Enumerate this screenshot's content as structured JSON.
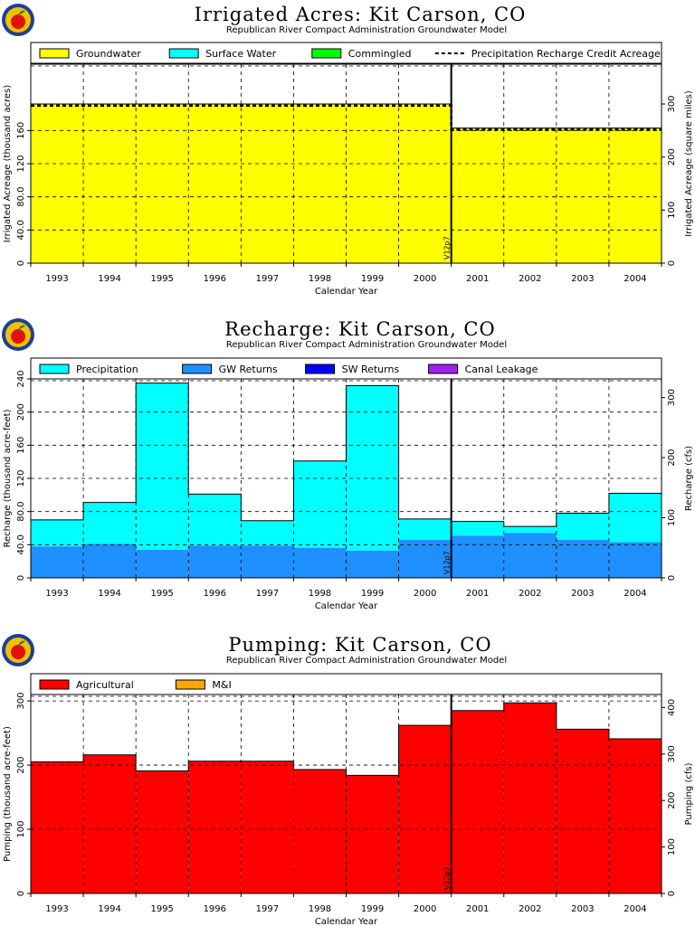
{
  "logo_colors": {
    "ring": "#1d3f9a",
    "fill": "#f3c100",
    "apple": "#e0120c",
    "leaf": "#1f8a1f"
  },
  "chart_data": [
    {
      "type": "area",
      "title": "Irrigated Acres: Kit Carson, CO",
      "subtitle": "Republican River Compact Administration Groundwater Model",
      "xlabel": "Calendar Year",
      "ylabel": "Irrigated Acreage (thousand acres)",
      "y2label": "Irrigated Acreage (square miles)",
      "categories": [
        "1993",
        "1994",
        "1995",
        "1996",
        "1997",
        "1998",
        "1999",
        "2000",
        "2001",
        "2002",
        "2003",
        "2004"
      ],
      "ylim": [
        0,
        240
      ],
      "yticks": [
        "0",
        "40.0",
        "80.0",
        "120",
        "160"
      ],
      "ytick_values": [
        0,
        40,
        80,
        120,
        160
      ],
      "y2lim": [
        0,
        375
      ],
      "y2ticks": [
        "0",
        "100",
        "200",
        "300"
      ],
      "y2tick_values": [
        0,
        100,
        200,
        300
      ],
      "series": [
        {
          "name": "Groundwater",
          "color": "#ffff00",
          "values": [
            192,
            192,
            192,
            192,
            192,
            192,
            192,
            192,
            163,
            163,
            163,
            163
          ]
        },
        {
          "name": "Surface Water",
          "color": "#00ffff",
          "values": [
            0,
            0,
            0,
            0,
            0,
            0,
            0,
            0,
            0,
            0,
            0,
            0
          ]
        },
        {
          "name": "Commingled",
          "color": "#00ff00",
          "values": [
            0,
            0,
            0,
            0,
            0,
            0,
            0,
            0,
            0,
            0,
            0,
            0
          ]
        }
      ],
      "line_series": {
        "name": "Precipitation Recharge Credit Acreage",
        "style": "dashed",
        "values": [
          190,
          190,
          190,
          190,
          190,
          190,
          190,
          190,
          161,
          161,
          161,
          161
        ]
      },
      "legend_position": "top",
      "marker": {
        "label": "V12p7",
        "after_index": 7
      },
      "grid": true
    },
    {
      "type": "area",
      "title": "Recharge: Kit Carson, CO",
      "subtitle": "Republican River Compact Administration Groundwater Model",
      "xlabel": "Calendar Year",
      "ylabel": "Recharge (thousand acre-feet)",
      "y2label": "Recharge (cfs)",
      "categories": [
        "1993",
        "1994",
        "1995",
        "1996",
        "1997",
        "1998",
        "1999",
        "2000",
        "2001",
        "2002",
        "2003",
        "2004"
      ],
      "ylim": [
        0,
        240
      ],
      "yticks": [
        "0",
        "40.0",
        "80.0",
        "120",
        "160",
        "200",
        "240"
      ],
      "ytick_values": [
        0,
        40,
        80,
        120,
        160,
        200,
        240
      ],
      "y2lim": [
        0,
        331
      ],
      "y2ticks": [
        "0",
        "100",
        "200",
        "300"
      ],
      "y2tick_values": [
        0,
        100,
        200,
        300
      ],
      "series": [
        {
          "name": "GW Returns",
          "color": "#1e90ff",
          "values": [
            38,
            41,
            34,
            39,
            39,
            36,
            33,
            46,
            51,
            54,
            46,
            43
          ]
        },
        {
          "name": "Precipitation",
          "color": "#00ffff",
          "values": [
            32,
            50,
            201,
            62,
            30,
            105,
            199,
            25,
            17,
            8,
            32,
            59
          ]
        },
        {
          "name": "SW Returns",
          "color": "#0000ff",
          "values": [
            0,
            0,
            0,
            0,
            0,
            0,
            0,
            0,
            0,
            0,
            0,
            0
          ]
        },
        {
          "name": "Canal Leakage",
          "color": "#a020f0",
          "values": [
            0,
            0,
            0,
            0,
            0,
            0,
            0,
            0,
            0,
            0,
            0,
            0
          ]
        }
      ],
      "legend_order": [
        "Precipitation",
        "GW Returns",
        "SW Returns",
        "Canal Leakage"
      ],
      "legend_position": "top",
      "marker": {
        "label": "V12p7",
        "after_index": 7
      },
      "grid": true
    },
    {
      "type": "area",
      "title": "Pumping: Kit Carson, CO",
      "subtitle": "Republican River Compact Administration Groundwater Model",
      "xlabel": "Calendar Year",
      "ylabel": "Pumping (thousand acre-feet)",
      "y2label": "Pumping (cfs)",
      "categories": [
        "1993",
        "1994",
        "1995",
        "1996",
        "1997",
        "1998",
        "1999",
        "2000",
        "2001",
        "2002",
        "2003",
        "2004"
      ],
      "ylim": [
        0,
        310
      ],
      "yticks": [
        "0",
        "100",
        "200",
        "300"
      ],
      "ytick_values": [
        0,
        100,
        200,
        300
      ],
      "y2lim": [
        0,
        428
      ],
      "y2ticks": [
        "0",
        "100",
        "200",
        "300",
        "400"
      ],
      "y2tick_values": [
        0,
        100,
        200,
        300,
        400
      ],
      "series": [
        {
          "name": "Agricultural",
          "color": "#ff0000",
          "values": [
            205,
            216,
            191,
            206,
            206,
            193,
            184,
            262,
            285,
            297,
            256,
            241
          ]
        },
        {
          "name": "M&I",
          "color": "#ffa500",
          "values": [
            0,
            0,
            0,
            0,
            0,
            0,
            0,
            0,
            0,
            0,
            0,
            0
          ]
        }
      ],
      "legend_position": "top",
      "marker": {
        "label": "V12p7",
        "after_index": 7
      },
      "grid": true
    }
  ]
}
